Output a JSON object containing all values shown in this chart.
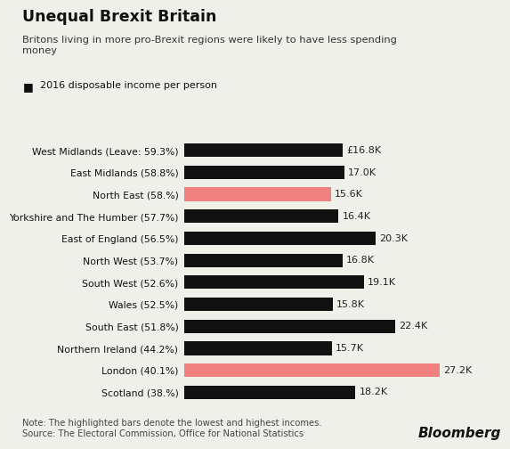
{
  "title": "Unequal Brexit Britain",
  "subtitle": "Britons living in more pro-Brexit regions were likely to have less spending\nmoney",
  "legend_label": "2016 disposable income per person",
  "categories": [
    "West Midlands (Leave: 59.3%)",
    "East Midlands (58.8%)",
    "North East (58.%)",
    "Yorkshire and The Humber (57.7%)",
    "East of England (56.5%)",
    "North West (53.7%)",
    "South West (52.6%)",
    "Wales (52.5%)",
    "South East (51.8%)",
    "Northern Ireland (44.2%)",
    "London (40.1%)",
    "Scotland (38.%)"
  ],
  "values": [
    16.8,
    17.0,
    15.6,
    16.4,
    20.3,
    16.8,
    19.1,
    15.8,
    22.4,
    15.7,
    27.2,
    18.2
  ],
  "labels": [
    "£16.8K",
    "17.0K",
    "15.6K",
    "16.4K",
    "20.3K",
    "16.8K",
    "19.1K",
    "15.8K",
    "22.4K",
    "15.7K",
    "27.2K",
    "18.2K"
  ],
  "colors": [
    "#111111",
    "#111111",
    "#f08080",
    "#111111",
    "#111111",
    "#111111",
    "#111111",
    "#111111",
    "#111111",
    "#111111",
    "#f08080",
    "#111111"
  ],
  "note": "Note: The highlighted bars denote the lowest and highest incomes.\nSource: The Electoral Commission, Office for National Statistics",
  "bg_color": "#f0f0eb",
  "xlim": [
    0,
    30
  ],
  "bar_height": 0.62
}
